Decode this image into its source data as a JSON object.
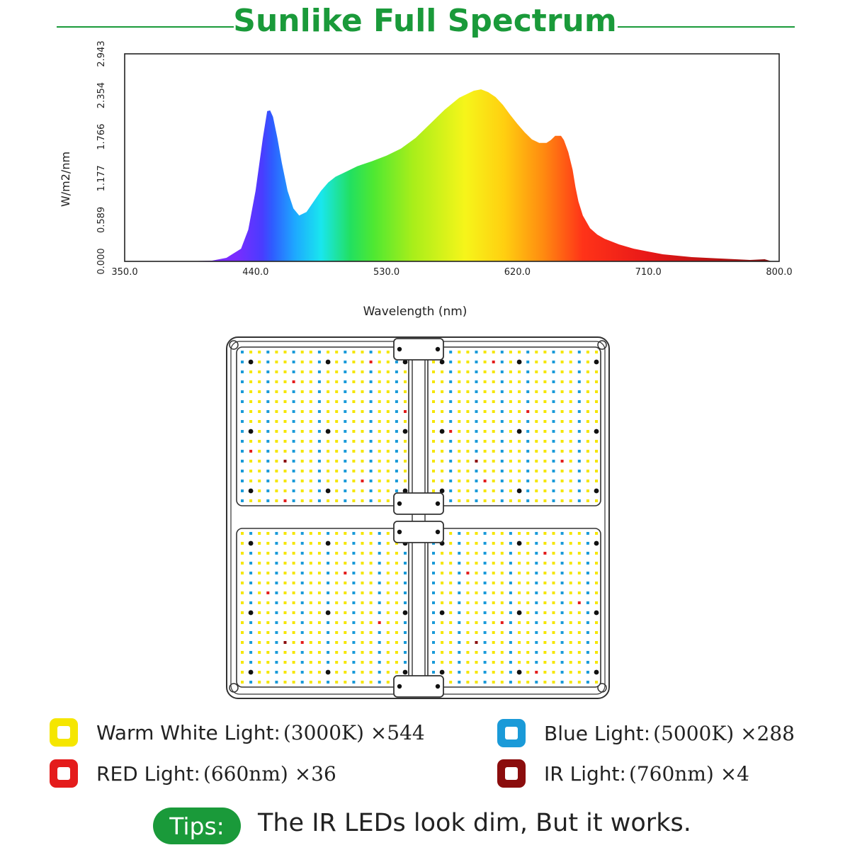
{
  "title": "Sunlike Full Spectrum",
  "colors": {
    "accent": "#1a9a3a",
    "warm_white": "#f5e600",
    "blue": "#1a9ad8",
    "red": "#e41c1c",
    "ir": "#8b0d0d"
  },
  "chart_data": {
    "type": "area",
    "title": "Sunlike Full Spectrum",
    "xlabel": "Wavelength (nm)",
    "ylabel": "W/m2/nm",
    "xlim": [
      350,
      800
    ],
    "ylim": [
      0,
      2.943
    ],
    "x_ticks": [
      "350.0",
      "440.0",
      "530.0",
      "620.0",
      "710.0",
      "800.0"
    ],
    "y_ticks": [
      "0.000",
      "0.589",
      "1.177",
      "1.766",
      "2.354",
      "2.943"
    ],
    "grid": false,
    "fill": "visible-spectrum gradient",
    "x": [
      350,
      390,
      410,
      420,
      430,
      435,
      440,
      445,
      448,
      450,
      452,
      455,
      458,
      462,
      466,
      470,
      475,
      480,
      485,
      490,
      495,
      500,
      505,
      510,
      520,
      530,
      540,
      550,
      560,
      570,
      580,
      590,
      595,
      600,
      605,
      610,
      615,
      620,
      625,
      630,
      635,
      640,
      643,
      646,
      650,
      652,
      655,
      658,
      660,
      662,
      665,
      670,
      675,
      680,
      690,
      700,
      710,
      720,
      740,
      760,
      780,
      790,
      795,
      800
    ],
    "values": [
      0.0,
      0.0,
      0.01,
      0.05,
      0.18,
      0.45,
      1.0,
      1.75,
      2.13,
      2.14,
      2.05,
      1.75,
      1.4,
      1.0,
      0.75,
      0.65,
      0.7,
      0.85,
      1.0,
      1.12,
      1.2,
      1.25,
      1.3,
      1.35,
      1.42,
      1.5,
      1.6,
      1.75,
      1.95,
      2.15,
      2.32,
      2.42,
      2.44,
      2.4,
      2.33,
      2.22,
      2.08,
      1.95,
      1.83,
      1.73,
      1.68,
      1.68,
      1.72,
      1.78,
      1.78,
      1.72,
      1.55,
      1.3,
      1.05,
      0.85,
      0.65,
      0.47,
      0.38,
      0.32,
      0.24,
      0.18,
      0.14,
      0.1,
      0.06,
      0.04,
      0.02,
      0.03,
      0.0,
      0.0
    ]
  },
  "legend": {
    "warm_white": {
      "label": "Warm White Light:",
      "spec": "(3000K) ×544"
    },
    "blue": {
      "label": "Blue Light:",
      "spec": "(5000K) ×288"
    },
    "red": {
      "label": "RED Light:",
      "spec": "(660nm) ×36"
    },
    "ir": {
      "label": "IR Light:",
      "spec": "(760nm) ×4"
    }
  },
  "tips": {
    "badge": "Tips:",
    "text": "The IR LEDs look dim, But it works."
  }
}
